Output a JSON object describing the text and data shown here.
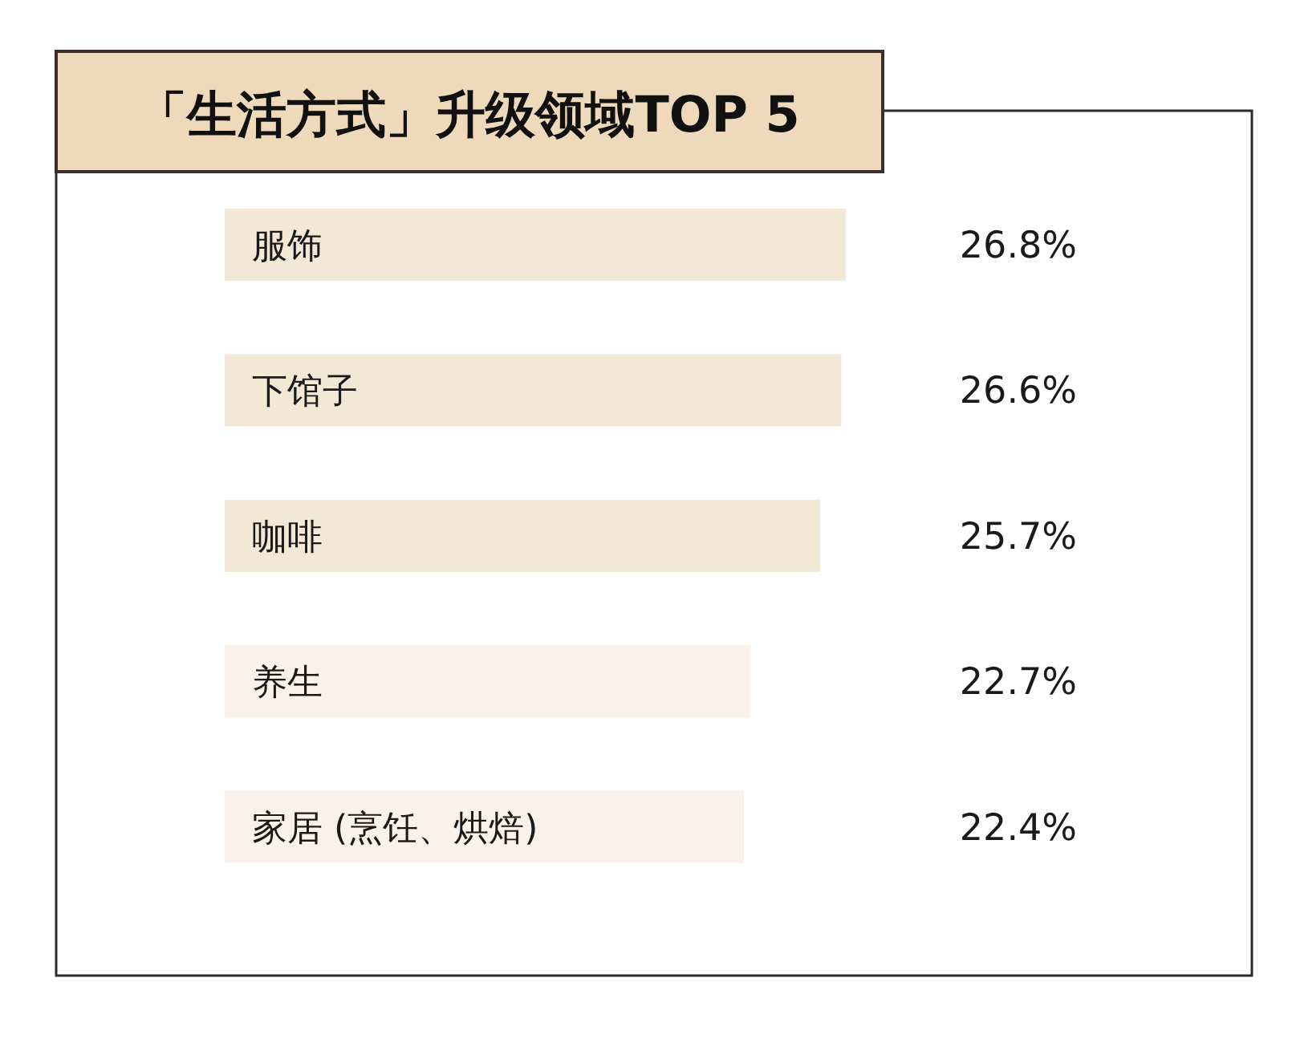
{
  "chart_data": {
    "type": "bar",
    "orientation": "horizontal",
    "title": "「生活方式」升级领域TOP 5",
    "categories": [
      "服饰",
      "下馆子",
      "咖啡",
      "养生",
      "家居 (烹饪、烘焙)"
    ],
    "values": [
      26.8,
      26.6,
      25.7,
      22.7,
      22.4
    ],
    "colors": [
      "#f3e8d6",
      "#f3e8d6",
      "#f3e8d6",
      "#faf2ea",
      "#faf2ea"
    ],
    "value_labels": [
      "26.8%",
      "26.6%",
      "25.7%",
      "22.7%",
      "22.4%"
    ]
  }
}
